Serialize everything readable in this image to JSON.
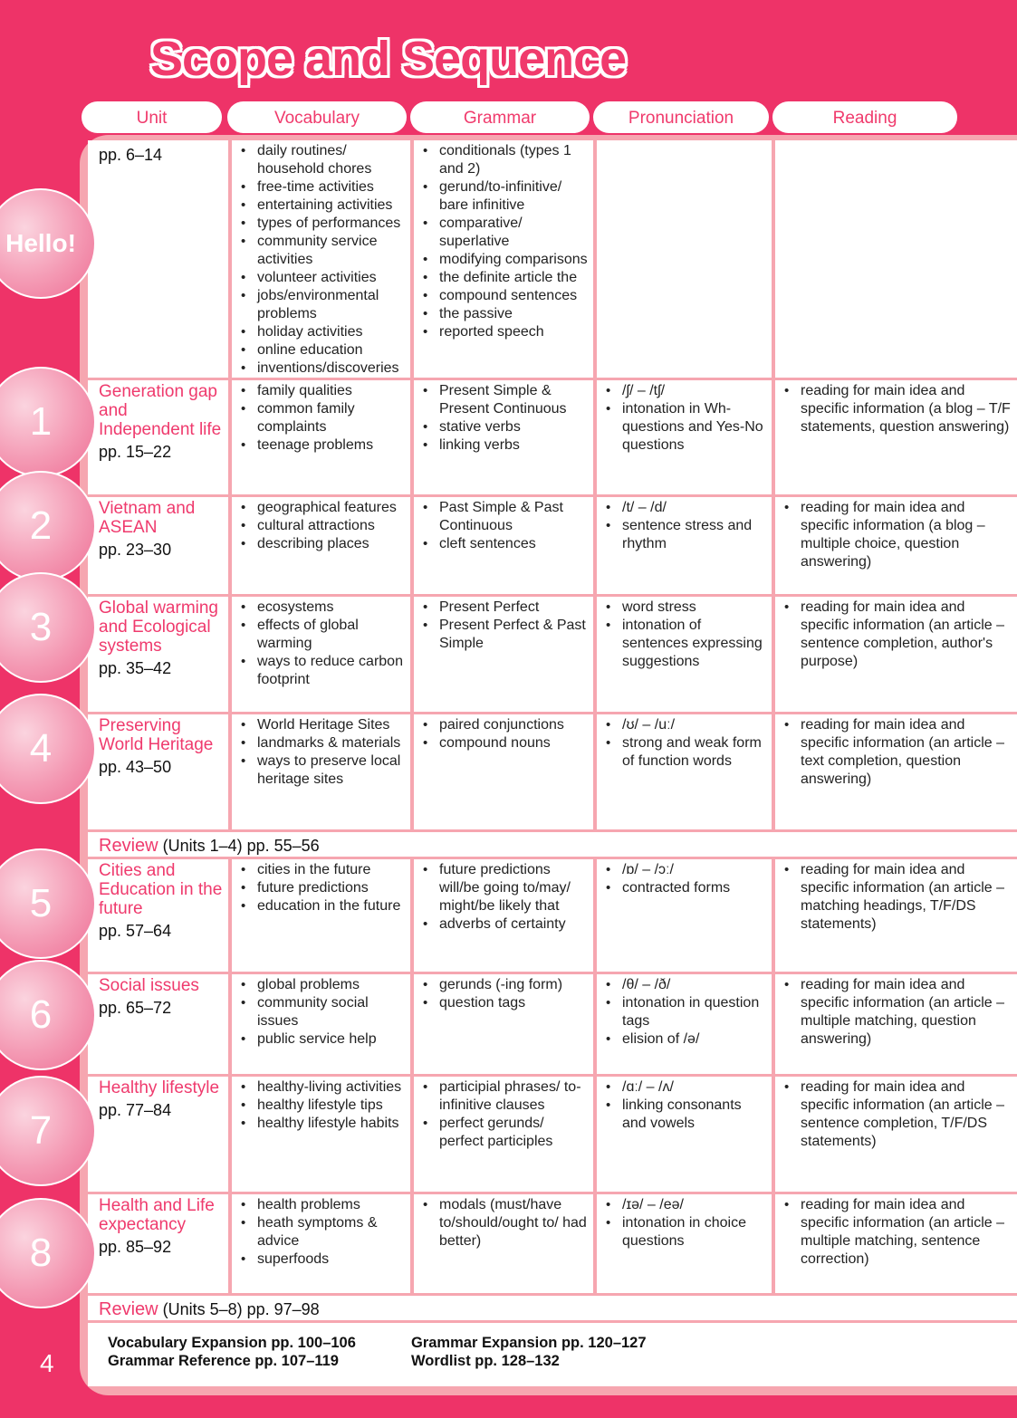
{
  "title": "Scope and Sequence",
  "headers": [
    "Unit",
    "Vocabulary",
    "Grammar",
    "Pronunciation",
    "Reading"
  ],
  "colors": {
    "background": "#ee3368",
    "accent": "#ef3a6d",
    "grid": "#f6a6b0"
  },
  "page_number": "4",
  "rows": [
    {
      "badge": "Hello!",
      "title": "",
      "pages": "pp. 6–14",
      "vocabulary": [
        "daily routines/ household chores",
        "free-time activities",
        "entertaining activities",
        "types of performances",
        "community service activities",
        "volunteer activities",
        "jobs/environmental problems",
        "holiday activities",
        "online education",
        "inventions/discoveries"
      ],
      "grammar": [
        "conditionals (types 1 and 2)",
        "gerund/to-infinitive/ bare infinitive",
        "comparative/ superlative",
        "modifying comparisons",
        "the definite article the",
        "compound sentences",
        "the passive",
        "reported speech"
      ],
      "pronunciation": [],
      "reading": []
    },
    {
      "badge": "1",
      "title": "Generation gap and Independent life",
      "pages": "pp. 15–22",
      "vocabulary": [
        "family qualities",
        "common family complaints",
        "teenage problems"
      ],
      "grammar": [
        "Present Simple & Present Continuous",
        "stative verbs",
        "linking verbs"
      ],
      "pronunciation": [
        "/ʃ/ – /tʃ/",
        "intonation in Wh-questions and Yes-No questions"
      ],
      "reading": [
        "reading for main idea and specific information (a blog – T/F statements, question answering)"
      ]
    },
    {
      "badge": "2",
      "title": "Vietnam and ASEAN",
      "pages": "pp. 23–30",
      "vocabulary": [
        "geographical features",
        "cultural attractions",
        "describing places"
      ],
      "grammar": [
        "Past Simple & Past Continuous",
        "cleft sentences"
      ],
      "pronunciation": [
        "/t/ – /d/",
        "sentence stress and rhythm"
      ],
      "reading": [
        "reading for main idea and specific information (a blog – multiple choice, question answering)"
      ]
    },
    {
      "badge": "3",
      "title": "Global warming and Ecological systems",
      "pages": "pp. 35–42",
      "vocabulary": [
        "ecosystems",
        "effects of global warming",
        "ways to reduce carbon footprint"
      ],
      "grammar": [
        "Present Perfect",
        "Present Perfect & Past Simple"
      ],
      "pronunciation": [
        "word stress",
        "intonation of sentences expressing suggestions"
      ],
      "reading": [
        "reading for main idea and specific information (an article – sentence completion, author's purpose)"
      ]
    },
    {
      "badge": "4",
      "title": "Preserving World Heritage",
      "pages": "pp. 43–50",
      "vocabulary": [
        "World Heritage Sites",
        "landmarks & materials",
        "ways to preserve local heritage sites"
      ],
      "grammar": [
        "paired conjunctions",
        "compound nouns"
      ],
      "pronunciation": [
        "/ʊ/ – /uː/",
        "strong and weak form of function words"
      ],
      "reading": [
        "reading for main idea and specific information (an article – text completion, question answering)"
      ]
    },
    {
      "review": true,
      "label": "Review",
      "rest": " (Units 1–4) pp. 55–56"
    },
    {
      "badge": "5",
      "title": "Cities and Education in the future",
      "pages": "pp. 57–64",
      "vocabulary": [
        "cities in the future",
        "future predictions",
        "education in the future"
      ],
      "grammar": [
        "future predictions will/be going to/may/ might/be likely that",
        "adverbs of certainty"
      ],
      "pronunciation": [
        "/ɒ/ – /ɔː/",
        "contracted forms"
      ],
      "reading": [
        "reading for main idea and specific information (an article – matching headings, T/F/DS statements)"
      ]
    },
    {
      "badge": "6",
      "title": "Social issues",
      "pages": "pp. 65–72",
      "vocabulary": [
        "global problems",
        "community social issues",
        "public service help"
      ],
      "grammar": [
        "gerunds (-ing form)",
        "question tags"
      ],
      "pronunciation": [
        "/θ/ – /ð/",
        "intonation in question tags",
        "elision of /ə/"
      ],
      "reading": [
        "reading for main idea and specific information (an article – multiple matching, question answering)"
      ]
    },
    {
      "badge": "7",
      "title": "Healthy lifestyle",
      "pages": "pp. 77–84",
      "vocabulary": [
        "healthy-living activities",
        "healthy lifestyle tips",
        "healthy lifestyle habits"
      ],
      "grammar": [
        "participial phrases/ to-infinitive clauses",
        "perfect gerunds/ perfect participles"
      ],
      "pronunciation": [
        "/ɑː/ – /ʌ/",
        "linking consonants and vowels"
      ],
      "reading": [
        "reading for main idea and specific information (an article – sentence completion, T/F/DS statements)"
      ]
    },
    {
      "badge": "8",
      "title": "Health and Life expectancy",
      "pages": "pp. 85–92",
      "vocabulary": [
        "health problems",
        "heath symptoms & advice",
        "superfoods"
      ],
      "grammar": [
        "modals (must/have to/should/ought to/ had better)"
      ],
      "pronunciation": [
        "/ɪə/ – /eə/",
        "intonation in choice questions"
      ],
      "reading": [
        "reading for main idea and specific information (an article – multiple matching, sentence correction)"
      ]
    },
    {
      "review": true,
      "label": "Review",
      "rest": " (Units 5–8) pp. 97–98"
    }
  ],
  "footer": {
    "left": [
      "Vocabulary Expansion pp. 100–106",
      "Grammar Reference pp. 107–119"
    ],
    "right": [
      "Grammar Expansion pp. 120–127",
      "Wordlist pp. 128–132"
    ]
  }
}
